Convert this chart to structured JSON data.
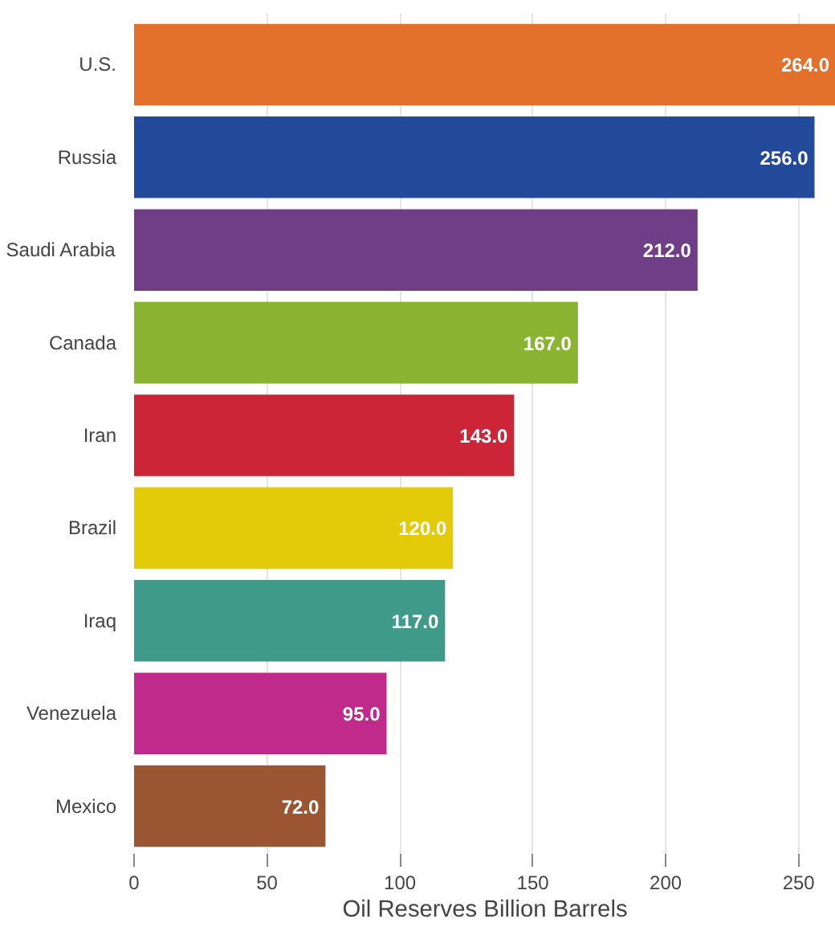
{
  "chart_data": {
    "type": "bar",
    "orientation": "horizontal",
    "xlabel": "Oil Reserves Billion Barrels",
    "categories": [
      "U.S.",
      "Russia",
      "Saudi Arabia",
      "Canada",
      "Iran",
      "Brazil",
      "Iraq",
      "Venezuela",
      "Mexico"
    ],
    "values": [
      264.0,
      256.0,
      212.0,
      167.0,
      143.0,
      120.0,
      117.0,
      95.0,
      72.0
    ],
    "colors": [
      "#e3712b",
      "#23499a",
      "#703e86",
      "#8ab432",
      "#cc2537",
      "#e4cb0a",
      "#3f9a8a",
      "#bf2a8b",
      "#9a5632"
    ],
    "value_labels": [
      "264.0",
      "256.0",
      "212.0",
      "167.0",
      "143.0",
      "120.0",
      "117.0",
      "95.0",
      "72.0"
    ],
    "xlim": [
      0,
      264
    ],
    "xticks": [
      0,
      50,
      100,
      150,
      200,
      250
    ],
    "grid": "x"
  }
}
